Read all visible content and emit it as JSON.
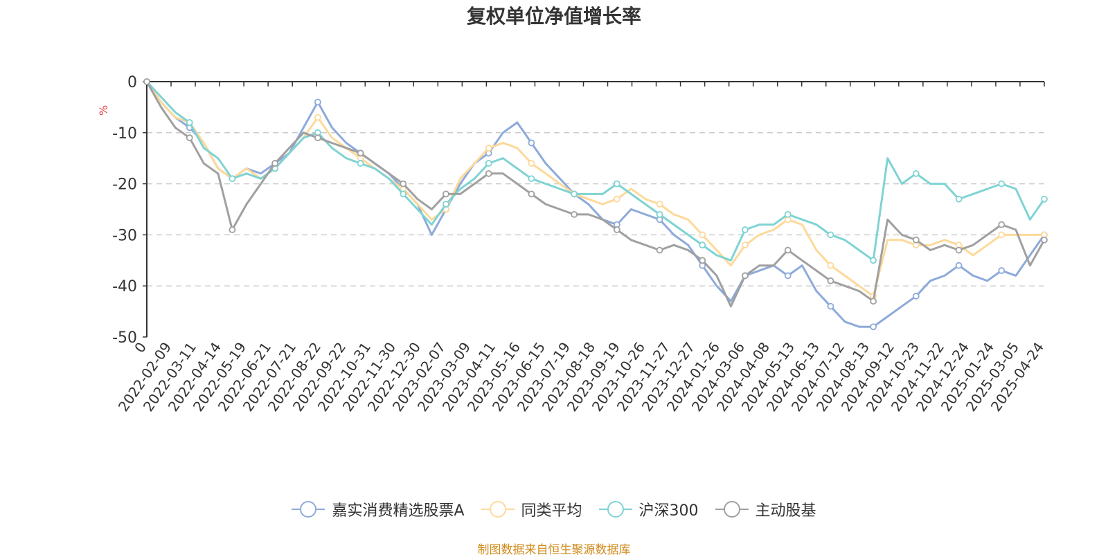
{
  "chart_data": {
    "type": "line",
    "title": "复权单位净值增长率",
    "ylabel": "%",
    "ylim": [
      -50,
      0
    ],
    "yticks": [
      0,
      -10,
      -20,
      -30,
      -40,
      -50
    ],
    "x_first_label": "0",
    "xtick_labels": [
      "2022-02-09",
      "2022-03-11",
      "2022-04-14",
      "2022-05-19",
      "2022-06-21",
      "2022-07-21",
      "2022-08-22",
      "2022-09-22",
      "2022-10-31",
      "2022-11-30",
      "2022-12-30",
      "2023-02-07",
      "2023-03-09",
      "2023-04-11",
      "2023-05-16",
      "2023-06-15",
      "2023-07-19",
      "2023-08-18",
      "2023-09-19",
      "2023-10-26",
      "2023-11-27",
      "2023-12-27",
      "2024-01-26",
      "2024-03-06",
      "2024-04-08",
      "2024-05-13",
      "2024-06-13",
      "2024-07-12",
      "2024-08-13",
      "2024-09-12",
      "2024-10-23",
      "2024-11-22",
      "2024-12-24",
      "2025-01-24",
      "2025-03-05",
      "2025-04-24"
    ],
    "grid": true,
    "legend_position": "bottom",
    "series": [
      {
        "name": "嘉实消费精选股票A",
        "color": "#8eaadb",
        "values": [
          0,
          -4,
          -7,
          -9,
          -12,
          -17,
          -19,
          -17,
          -18,
          -16,
          -14,
          -9,
          -4,
          -9,
          -12,
          -14,
          -16,
          -18,
          -21,
          -24,
          -30,
          -25,
          -20,
          -16,
          -14,
          -10,
          -8,
          -12,
          -16,
          -19,
          -22,
          -24,
          -27,
          -28,
          -25,
          -26,
          -27,
          -30,
          -32,
          -36,
          -40,
          -43,
          -38,
          -37,
          -36,
          -38,
          -36,
          -41,
          -44,
          -47,
          -48,
          -48,
          -46,
          -44,
          -42,
          -39,
          -38,
          -36,
          -38,
          -39,
          -37,
          -38,
          -34,
          -30
        ]
      },
      {
        "name": "同类平均",
        "color": "#fdd99a",
        "values": [
          0,
          -4,
          -7,
          -8,
          -12,
          -17,
          -19,
          -17,
          -19,
          -17,
          -14,
          -11,
          -7,
          -11,
          -13,
          -15,
          -17,
          -19,
          -21,
          -24,
          -27,
          -25,
          -19,
          -16,
          -13,
          -12,
          -13,
          -16,
          -18,
          -20,
          -22,
          -23,
          -24,
          -23,
          -21,
          -23,
          -24,
          -26,
          -27,
          -30,
          -33,
          -36,
          -32,
          -30,
          -29,
          -27,
          -28,
          -33,
          -36,
          -38,
          -40,
          -42,
          -31,
          -31,
          -32,
          -32,
          -31,
          -32,
          -34,
          -32,
          -30,
          -30,
          -30,
          -30
        ]
      },
      {
        "name": "沪深300",
        "color": "#7fd3d3",
        "values": [
          0,
          -3,
          -6,
          -8,
          -13,
          -15,
          -19,
          -18,
          -19,
          -17,
          -14,
          -11,
          -10,
          -13,
          -15,
          -16,
          -17,
          -19,
          -22,
          -25,
          -28,
          -24,
          -21,
          -19,
          -16,
          -15,
          -17,
          -19,
          -20,
          -21,
          -22,
          -22,
          -22,
          -20,
          -22,
          -24,
          -26,
          -28,
          -30,
          -32,
          -34,
          -35,
          -29,
          -28,
          -28,
          -26,
          -27,
          -28,
          -30,
          -31,
          -33,
          -35,
          -15,
          -20,
          -18,
          -20,
          -20,
          -23,
          -22,
          -21,
          -20,
          -21,
          -27,
          -23
        ]
      },
      {
        "name": "主动股基",
        "color": "#a0a0a0",
        "values": [
          0,
          -5,
          -9,
          -11,
          -16,
          -18,
          -29,
          -24,
          -20,
          -16,
          -13,
          -10,
          -11,
          -12,
          -13,
          -14,
          -16,
          -18,
          -20,
          -23,
          -25,
          -22,
          -22,
          -20,
          -18,
          -18,
          -20,
          -22,
          -24,
          -25,
          -26,
          -26,
          -27,
          -29,
          -31,
          -32,
          -33,
          -32,
          -33,
          -35,
          -38,
          -44,
          -38,
          -36,
          -36,
          -33,
          -35,
          -37,
          -39,
          -40,
          -41,
          -43,
          -27,
          -30,
          -31,
          -33,
          -32,
          -33,
          -32,
          -30,
          -28,
          -29,
          -36,
          -31
        ]
      }
    ]
  },
  "source_note": "制图数据来自恒生聚源数据库"
}
